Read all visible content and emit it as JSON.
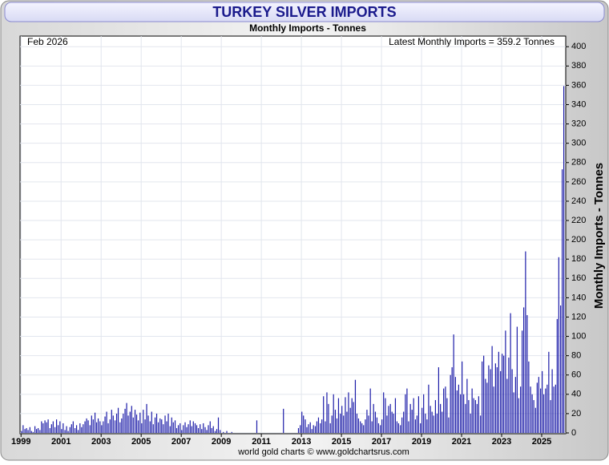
{
  "chart_data": {
    "type": "bar",
    "title": "TURKEY SILVER IMPORTS",
    "subtitle": "Monthly Imports - Tonnes",
    "date_label": "Feb 2026",
    "latest_label": "Latest Monthly Imports = 359.2 Tonnes",
    "y_axis_label": "Monthly Imports - Tonnes",
    "source": "world gold charts © www.goldchartsrus.com",
    "color": "#1c1ca8",
    "grid": true,
    "xlim": [
      1998.95,
      2026.2
    ],
    "xticks": [
      1999,
      2001,
      2003,
      2005,
      2007,
      2009,
      2011,
      2013,
      2015,
      2017,
      2019,
      2021,
      2023,
      2025
    ],
    "ylim": [
      0,
      411
    ],
    "yticks": [
      0,
      20,
      40,
      60,
      80,
      100,
      120,
      140,
      160,
      180,
      200,
      220,
      240,
      260,
      280,
      300,
      320,
      340,
      360,
      380,
      400
    ],
    "x": [
      1999,
      1999.08,
      1999.17,
      1999.25,
      1999.33,
      1999.42,
      1999.5,
      1999.58,
      1999.67,
      1999.75,
      1999.83,
      1999.92,
      2000,
      2000.08,
      2000.17,
      2000.25,
      2000.33,
      2000.42,
      2000.5,
      2000.58,
      2000.67,
      2000.75,
      2000.83,
      2000.92,
      2001,
      2001.08,
      2001.17,
      2001.25,
      2001.33,
      2001.42,
      2001.5,
      2001.58,
      2001.67,
      2001.75,
      2001.83,
      2001.92,
      2002,
      2002.08,
      2002.17,
      2002.25,
      2002.33,
      2002.42,
      2002.5,
      2002.58,
      2002.67,
      2002.75,
      2002.83,
      2002.92,
      2003,
      2003.08,
      2003.17,
      2003.25,
      2003.33,
      2003.42,
      2003.5,
      2003.58,
      2003.67,
      2003.75,
      2003.83,
      2003.92,
      2004,
      2004.08,
      2004.17,
      2004.25,
      2004.33,
      2004.42,
      2004.5,
      2004.58,
      2004.67,
      2004.75,
      2004.83,
      2004.92,
      2005,
      2005.08,
      2005.17,
      2005.25,
      2005.33,
      2005.42,
      2005.5,
      2005.58,
      2005.67,
      2005.75,
      2005.83,
      2005.92,
      2006,
      2006.08,
      2006.17,
      2006.25,
      2006.33,
      2006.42,
      2006.5,
      2006.58,
      2006.67,
      2006.75,
      2006.83,
      2006.92,
      2007,
      2007.08,
      2007.17,
      2007.25,
      2007.33,
      2007.42,
      2007.5,
      2007.58,
      2007.67,
      2007.75,
      2007.83,
      2007.92,
      2008,
      2008.08,
      2008.17,
      2008.25,
      2008.33,
      2008.42,
      2008.5,
      2008.58,
      2008.67,
      2008.75,
      2008.83,
      2008.92,
      2009,
      2009.08,
      2009.17,
      2009.25,
      2009.33,
      2009.42,
      2009.5,
      2009.58,
      2009.67,
      2009.75,
      2009.83,
      2009.92,
      2010,
      2010.08,
      2010.17,
      2010.25,
      2010.33,
      2010.42,
      2010.5,
      2010.58,
      2010.67,
      2010.75,
      2010.83,
      2010.92,
      2011,
      2011.08,
      2011.17,
      2011.25,
      2011.33,
      2011.42,
      2011.5,
      2011.58,
      2011.67,
      2011.75,
      2011.83,
      2011.92,
      2012,
      2012.08,
      2012.17,
      2012.25,
      2012.33,
      2012.42,
      2012.5,
      2012.58,
      2012.67,
      2012.75,
      2012.83,
      2012.92,
      2013,
      2013.08,
      2013.17,
      2013.25,
      2013.33,
      2013.42,
      2013.5,
      2013.58,
      2013.67,
      2013.75,
      2013.83,
      2013.92,
      2014,
      2014.08,
      2014.17,
      2014.25,
      2014.33,
      2014.42,
      2014.5,
      2014.58,
      2014.67,
      2014.75,
      2014.83,
      2014.92,
      2015,
      2015.08,
      2015.17,
      2015.25,
      2015.33,
      2015.42,
      2015.5,
      2015.58,
      2015.67,
      2015.75,
      2015.83,
      2015.92,
      2016,
      2016.08,
      2016.17,
      2016.25,
      2016.33,
      2016.42,
      2016.5,
      2016.58,
      2016.67,
      2016.75,
      2016.83,
      2016.92,
      2017,
      2017.08,
      2017.17,
      2017.25,
      2017.33,
      2017.42,
      2017.5,
      2017.58,
      2017.67,
      2017.75,
      2017.83,
      2017.92,
      2018,
      2018.08,
      2018.17,
      2018.25,
      2018.33,
      2018.42,
      2018.5,
      2018.58,
      2018.67,
      2018.75,
      2018.83,
      2018.92,
      2019,
      2019.08,
      2019.17,
      2019.25,
      2019.33,
      2019.42,
      2019.5,
      2019.58,
      2019.67,
      2019.75,
      2019.83,
      2019.92,
      2020,
      2020.08,
      2020.17,
      2020.25,
      2020.33,
      2020.42,
      2020.5,
      2020.58,
      2020.67,
      2020.75,
      2020.83,
      2020.92,
      2021,
      2021.08,
      2021.17,
      2021.25,
      2021.33,
      2021.42,
      2021.5,
      2021.58,
      2021.67,
      2021.75,
      2021.83,
      2021.92,
      2022,
      2022.08,
      2022.17,
      2022.25,
      2022.33,
      2022.42,
      2022.5,
      2022.58,
      2022.67,
      2022.75,
      2022.83,
      2022.92,
      2023,
      2023.08,
      2023.17,
      2023.25,
      2023.33,
      2023.42,
      2023.5,
      2023.58,
      2023.67,
      2023.75,
      2023.83,
      2023.92,
      2024,
      2024.08,
      2024.17,
      2024.25,
      2024.33,
      2024.42,
      2024.5,
      2024.58,
      2024.67,
      2024.75,
      2024.83,
      2024.92,
      2025,
      2025.08,
      2025.17,
      2025.25,
      2025.33,
      2025.42,
      2025.5,
      2025.58,
      2025.67,
      2025.75,
      2025.83,
      2025.92,
      2026,
      2026.08
    ],
    "values": [
      2,
      8,
      4,
      5,
      3,
      6,
      2,
      1,
      7,
      4,
      5,
      3,
      12,
      10,
      13,
      11,
      14,
      5,
      9,
      12,
      6,
      14,
      8,
      12,
      4,
      10,
      3,
      7,
      2,
      6,
      9,
      12,
      5,
      8,
      3,
      10,
      6,
      9,
      12,
      15,
      13,
      8,
      18,
      14,
      21,
      11,
      15,
      12,
      8,
      12,
      17,
      22,
      10,
      14,
      24,
      18,
      13,
      20,
      26,
      11,
      15,
      20,
      25,
      31,
      18,
      22,
      28,
      16,
      24,
      19,
      13,
      21,
      10,
      24,
      14,
      30,
      18,
      12,
      22,
      9,
      16,
      20,
      11,
      15,
      14,
      9,
      18,
      12,
      20,
      7,
      16,
      11,
      13,
      5,
      8,
      10,
      3,
      8,
      11,
      6,
      9,
      13,
      7,
      12,
      10,
      8,
      5,
      9,
      4,
      10,
      6,
      3,
      8,
      12,
      5,
      7,
      2,
      4,
      16,
      3,
      0,
      1,
      0,
      2,
      0,
      0,
      1,
      0,
      0,
      0,
      0,
      0,
      0,
      0,
      0,
      0,
      0,
      0,
      0,
      0,
      0,
      13,
      0,
      0,
      0,
      0,
      0,
      0,
      0,
      0,
      0,
      0,
      0,
      0,
      0,
      0,
      0,
      25,
      0,
      0,
      0,
      0,
      0,
      0,
      0,
      0,
      5,
      8,
      22,
      18,
      14,
      6,
      9,
      11,
      4,
      8,
      7,
      12,
      16,
      10,
      14,
      38,
      12,
      42,
      30,
      10,
      18,
      40,
      24,
      15,
      36,
      20,
      28,
      18,
      37,
      22,
      42,
      26,
      36,
      32,
      55,
      20,
      15,
      12,
      10,
      8,
      14,
      24,
      18,
      46,
      12,
      30,
      22,
      16,
      10,
      8,
      14,
      42,
      36,
      18,
      28,
      30,
      22,
      20,
      36,
      12,
      10,
      8,
      16,
      22,
      40,
      46,
      12,
      30,
      24,
      36,
      14,
      18,
      38,
      10,
      26,
      40,
      20,
      14,
      50,
      28,
      22,
      18,
      34,
      20,
      68,
      30,
      22,
      46,
      48,
      36,
      16,
      60,
      68,
      102,
      58,
      44,
      50,
      40,
      74,
      40,
      30,
      56,
      34,
      20,
      46,
      36,
      34,
      30,
      38,
      18,
      74,
      80,
      56,
      52,
      70,
      66,
      90,
      48,
      72,
      68,
      84,
      64,
      82,
      80,
      106,
      56,
      78,
      124,
      66,
      42,
      58,
      110,
      36,
      48,
      106,
      130,
      188,
      122,
      74,
      48,
      40,
      34,
      26,
      52,
      58,
      46,
      64,
      40,
      46,
      50,
      84,
      34,
      66,
      48,
      50,
      118,
      182,
      132,
      273,
      359.2
    ]
  }
}
